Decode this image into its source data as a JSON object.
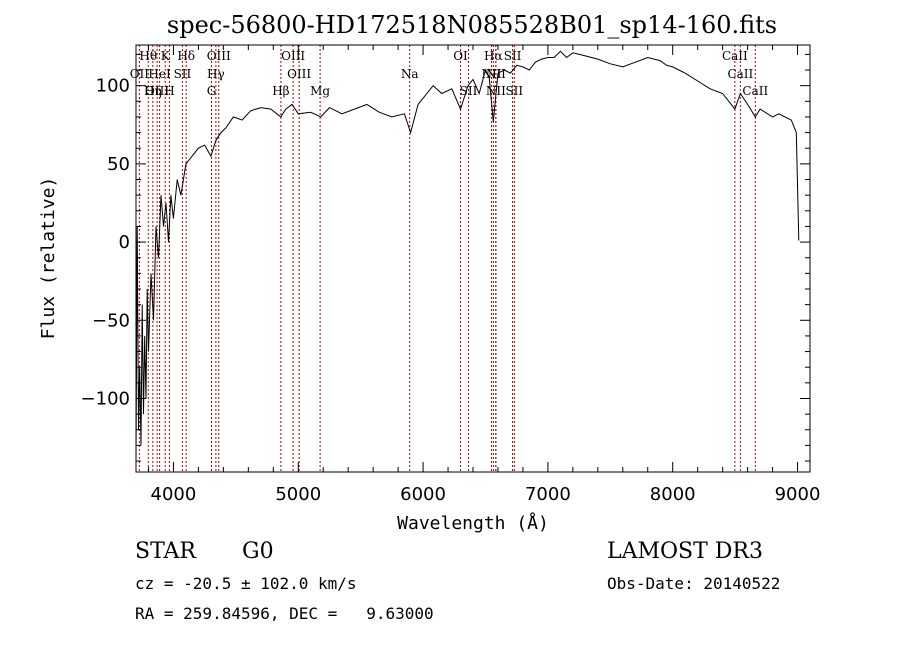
{
  "chart_data": {
    "type": "line",
    "title": "spec-56800-HD172518N085528B01_sp14-160.fits",
    "xlabel": "Wavelength (Å)",
    "ylabel": "Flux (relative)",
    "xlim": [
      3700,
      9100
    ],
    "ylim": [
      -147,
      126
    ],
    "xticks": [
      4000,
      5000,
      6000,
      7000,
      8000,
      9000
    ],
    "yticks": [
      -100,
      -50,
      0,
      50,
      100
    ],
    "grid": false,
    "series": [
      {
        "x": [
          3700,
          3710,
          3720,
          3730,
          3740,
          3750,
          3760,
          3770,
          3780,
          3790,
          3800,
          3820,
          3840,
          3860,
          3880,
          3900,
          3920,
          3940,
          3960,
          3980,
          4000,
          4030,
          4060,
          4100,
          4150,
          4200,
          4250,
          4300,
          4340,
          4380,
          4420,
          4480,
          4550,
          4620,
          4700,
          4780,
          4860,
          4900,
          4950,
          5000,
          5100,
          5180,
          5250,
          5350,
          5450,
          5550,
          5650,
          5750,
          5850,
          5900,
          5960,
          6000,
          6080,
          6150,
          6230,
          6300,
          6360,
          6400,
          6450,
          6500,
          6530,
          6563,
          6600,
          6650,
          6700,
          6750,
          6800,
          6850,
          6900,
          6950,
          7000,
          7050,
          7100,
          7150,
          7200,
          7300,
          7400,
          7500,
          7600,
          7700,
          7800,
          7900,
          7950,
          8000,
          8050,
          8100,
          8200,
          8300,
          8400,
          8498,
          8542,
          8600,
          8662,
          8700,
          8800,
          8850,
          8900,
          8950,
          8990,
          9010
        ],
        "y": [
          -140,
          10,
          -120,
          -80,
          -130,
          -40,
          -110,
          -60,
          -100,
          -30,
          -70,
          -20,
          -50,
          10,
          -10,
          30,
          10,
          25,
          0,
          30,
          15,
          40,
          30,
          50,
          55,
          60,
          62,
          55,
          65,
          70,
          73,
          80,
          78,
          84,
          86,
          85,
          80,
          85,
          88,
          82,
          83,
          80,
          86,
          82,
          85,
          88,
          83,
          80,
          82,
          70,
          88,
          92,
          100,
          95,
          98,
          85,
          100,
          104,
          95,
          110,
          105,
          77,
          108,
          110,
          108,
          113,
          112,
          110,
          115,
          117,
          118,
          118,
          122,
          118,
          121,
          119,
          117,
          114,
          112,
          115,
          118,
          116,
          113,
          112,
          110,
          108,
          103,
          98,
          95,
          85,
          95,
          88,
          80,
          85,
          80,
          82,
          80,
          78,
          70,
          1
        ]
      }
    ],
    "lines": [
      {
        "name": "Hθ",
        "wl": 3798,
        "row": 0
      },
      {
        "name": "K",
        "wl": 3934,
        "row": 0
      },
      {
        "name": "Hδ",
        "wl": 4102,
        "row": 0
      },
      {
        "name": "OIII",
        "wl": 4363,
        "row": 0
      },
      {
        "name": "OIII",
        "wl": 4959,
        "row": 0
      },
      {
        "name": "OI",
        "wl": 6300,
        "row": 0
      },
      {
        "name": "Hα",
        "wl": 6563,
        "row": 0
      },
      {
        "name": "SII",
        "wl": 6717,
        "row": 0
      },
      {
        "name": "CaII",
        "wl": 8498,
        "row": 0
      },
      {
        "name": "OII",
        "wl": 3727,
        "row": 1
      },
      {
        "name": "HeI",
        "wl": 3889,
        "row": 1
      },
      {
        "name": "SII",
        "wl": 4072,
        "row": 1
      },
      {
        "name": "Hγ",
        "wl": 4340,
        "row": 1
      },
      {
        "name": "OIII",
        "wl": 5007,
        "row": 1
      },
      {
        "name": "Na",
        "wl": 5893,
        "row": 1
      },
      {
        "name": "NII",
        "wl": 6548,
        "row": 1
      },
      {
        "name": "NII",
        "wl": 6583,
        "row": 1
      },
      {
        "name": "CaII",
        "wl": 8542,
        "row": 1
      },
      {
        "name": "OIII",
        "wl": 3869,
        "row": 2
      },
      {
        "name": "Hη",
        "wl": 3835,
        "row": 2
      },
      {
        "name": "H",
        "wl": 3968,
        "row": 2
      },
      {
        "name": "G",
        "wl": 4305,
        "row": 2
      },
      {
        "name": "Hβ",
        "wl": 4861,
        "row": 2
      },
      {
        "name": "Mg",
        "wl": 5175,
        "row": 2
      },
      {
        "name": "SII",
        "wl": 6364,
        "row": 2
      },
      {
        "name": "NII",
        "wl": 6583,
        "row": 2
      },
      {
        "name": "SII",
        "wl": 6731,
        "row": 2
      },
      {
        "name": "CaII",
        "wl": 8662,
        "row": 2
      }
    ]
  },
  "info": {
    "class": "STAR",
    "subclass": "G0",
    "survey": "LAMOST DR3",
    "cz": "cz = -20.5 ± 102.0 km/s",
    "obs_date": "Obs-Date: 20140522",
    "radec": "RA = 259.84596, DEC =   9.63000"
  }
}
